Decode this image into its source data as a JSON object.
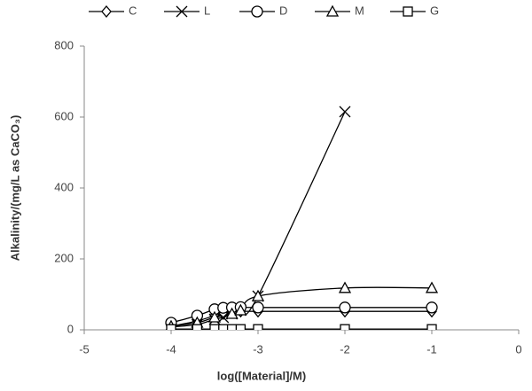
{
  "chart_data": {
    "type": "scatter",
    "xlabel": "log([Material]/M)",
    "ylabel": "Alkalinity/(mg/L as CaCO₃)",
    "xlim": [
      -5,
      0
    ],
    "xticks": [
      -5,
      -4,
      -3,
      -2,
      -1,
      0
    ],
    "ylim": [
      0,
      800
    ],
    "yticks": [
      0,
      200,
      400,
      600,
      800
    ],
    "legend": "top",
    "series": [
      {
        "name": "C",
        "marker": "diamond",
        "color": "#000000",
        "x": [
          -4,
          -3.7,
          -3.5,
          -3.4,
          -3.3,
          -3.2,
          -3,
          -2,
          -1
        ],
        "values": [
          10,
          25,
          40,
          45,
          50,
          52,
          52,
          52,
          52
        ]
      },
      {
        "name": "L",
        "marker": "x",
        "color": "#000000",
        "x": [
          -4,
          -3.7,
          -3.5,
          -3.4,
          -3.3,
          -3.2,
          -3,
          -2
        ],
        "values": [
          8,
          15,
          30,
          35,
          45,
          55,
          95,
          615
        ]
      },
      {
        "name": "D",
        "marker": "circle",
        "color": "#000000",
        "x": [
          -4,
          -3.7,
          -3.5,
          -3.4,
          -3.3,
          -3.2,
          -3,
          -2,
          -1
        ],
        "values": [
          20,
          40,
          58,
          62,
          63,
          64,
          63,
          63,
          63
        ]
      },
      {
        "name": "M",
        "marker": "triangle",
        "color": "#000000",
        "x": [
          -4,
          -3.7,
          -3.5,
          -3.3,
          -3.2,
          -3,
          -2,
          -1
        ],
        "values": [
          10,
          20,
          35,
          45,
          55,
          95,
          118,
          118
        ]
      },
      {
        "name": "G",
        "marker": "square",
        "color": "#000000",
        "x": [
          -4,
          -3.7,
          -3.5,
          -3.4,
          -3.3,
          -3.2,
          -3,
          -2,
          -1
        ],
        "values": [
          2,
          2,
          2,
          2,
          2,
          2,
          2,
          2,
          2
        ]
      }
    ]
  }
}
